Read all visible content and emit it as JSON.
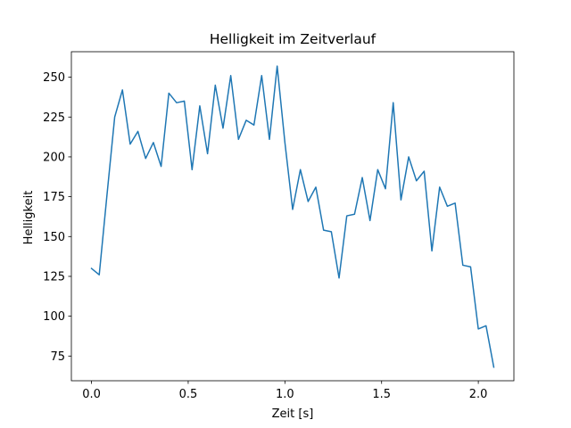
{
  "chart_data": {
    "type": "line",
    "title": "Helligkeit im Zeitverlauf",
    "xlabel": "Zeit [s]",
    "ylabel": "Helligkeit",
    "xlim": [
      -0.104,
      2.184
    ],
    "ylim": [
      59.5,
      266.0
    ],
    "xticks": [
      0.0,
      0.5,
      1.0,
      1.5,
      2.0
    ],
    "xtick_labels": [
      "0.0",
      "0.5",
      "1.0",
      "1.5",
      "2.0"
    ],
    "yticks": [
      75,
      100,
      125,
      150,
      175,
      200,
      225,
      250
    ],
    "ytick_labels": [
      "75",
      "100",
      "125",
      "150",
      "175",
      "200",
      "225",
      "250"
    ],
    "grid": false,
    "legend": "none",
    "series": [
      {
        "color": "#1f77b4",
        "x": [
          0.0,
          0.04,
          0.08,
          0.12,
          0.16,
          0.2,
          0.24,
          0.28,
          0.32,
          0.36,
          0.4,
          0.44,
          0.48,
          0.52,
          0.56,
          0.6,
          0.64,
          0.68,
          0.72,
          0.76,
          0.8,
          0.84,
          0.88,
          0.92,
          0.96,
          1.0,
          1.04,
          1.08,
          1.12,
          1.16,
          1.2,
          1.24,
          1.28,
          1.32,
          1.36,
          1.4,
          1.44,
          1.48,
          1.52,
          1.56,
          1.6,
          1.64,
          1.68,
          1.72,
          1.76,
          1.8,
          1.84,
          1.88,
          1.92,
          1.96,
          2.0,
          2.04,
          2.08
        ],
        "y": [
          130,
          126,
          176,
          225,
          242,
          208,
          216,
          199,
          209,
          194,
          240,
          234,
          235,
          192,
          232,
          202,
          245,
          218,
          251,
          211,
          223,
          220,
          251,
          211,
          257,
          209,
          167,
          192,
          172,
          181,
          154,
          153,
          124,
          163,
          164,
          187,
          160,
          192,
          180,
          234,
          173,
          200,
          185,
          191,
          141,
          181,
          169,
          171,
          132,
          131,
          92,
          94,
          68
        ]
      }
    ]
  }
}
